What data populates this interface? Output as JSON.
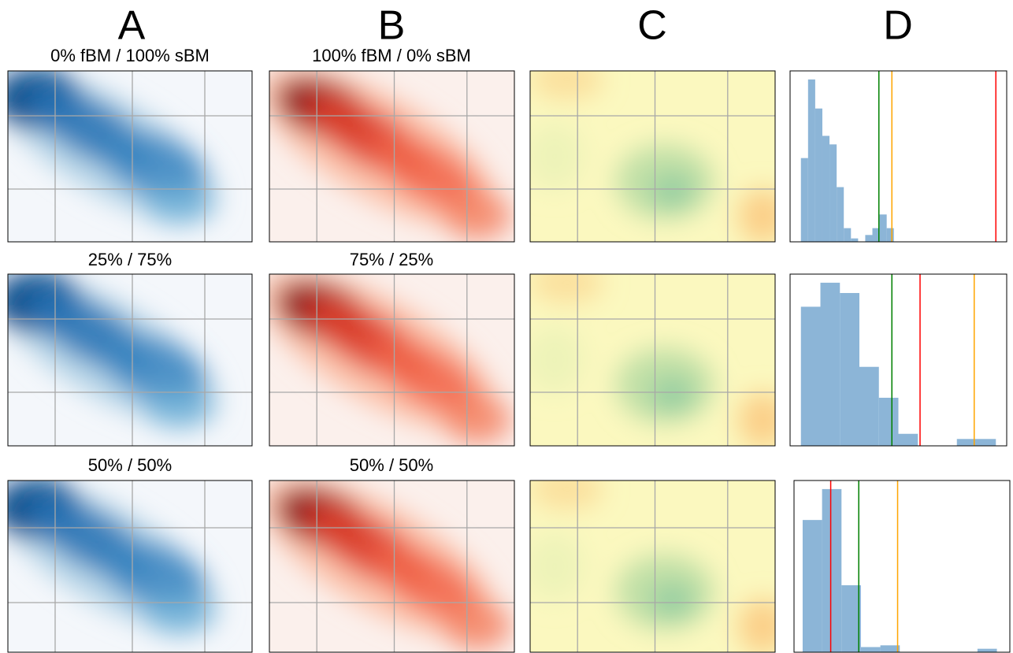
{
  "columns": [
    "A",
    "B",
    "C",
    "D"
  ],
  "row_labels": [
    [
      "0% fBM / 100% sBM",
      "100% fBM / 0% sBM"
    ],
    [
      "25% / 75%",
      "75% / 25%"
    ],
    [
      "50% / 50%",
      "50% / 50%"
    ]
  ],
  "chart_data": [
    {
      "type": "histogram",
      "color": "#7fadd3",
      "bins": [
        5,
        8.3,
        11.6,
        14.9,
        18.2,
        21.5,
        24.8,
        28.1,
        31.4,
        34.7,
        38,
        41.3,
        44.6,
        47.9
      ],
      "values": [
        49,
        95,
        78,
        62,
        57,
        32,
        8,
        2,
        0,
        4,
        8,
        16,
        8
      ],
      "xlim": [
        0,
        100
      ],
      "ylim": [
        0,
        100
      ],
      "vlines": [
        {
          "value": 41,
          "color": "green"
        },
        {
          "value": 47,
          "color": "orange"
        },
        {
          "value": 95,
          "color": "red"
        }
      ]
    },
    {
      "type": "histogram",
      "color": "#7fadd3",
      "bins": [
        5,
        14,
        23,
        32,
        41,
        50,
        59,
        68,
        77,
        86,
        95
      ],
      "values": [
        81,
        95,
        89,
        46,
        28,
        7,
        0,
        0,
        4,
        4
      ],
      "xlim": [
        0,
        100
      ],
      "ylim": [
        0,
        100
      ],
      "vlines": [
        {
          "value": 47,
          "color": "green"
        },
        {
          "value": 60,
          "color": "red"
        },
        {
          "value": 85,
          "color": "orange"
        }
      ]
    },
    {
      "type": "histogram",
      "color": "#7fadd3",
      "bins": [
        4,
        13,
        22,
        31,
        40,
        49,
        58,
        67,
        76,
        85,
        94
      ],
      "values": [
        77,
        95,
        39,
        3,
        4,
        0,
        0,
        0,
        0,
        2
      ],
      "xlim": [
        0,
        100
      ],
      "ylim": [
        0,
        100
      ],
      "vlines": [
        {
          "value": 17,
          "color": "red"
        },
        {
          "value": 30,
          "color": "green"
        },
        {
          "value": 48,
          "color": "orange"
        }
      ]
    }
  ]
}
